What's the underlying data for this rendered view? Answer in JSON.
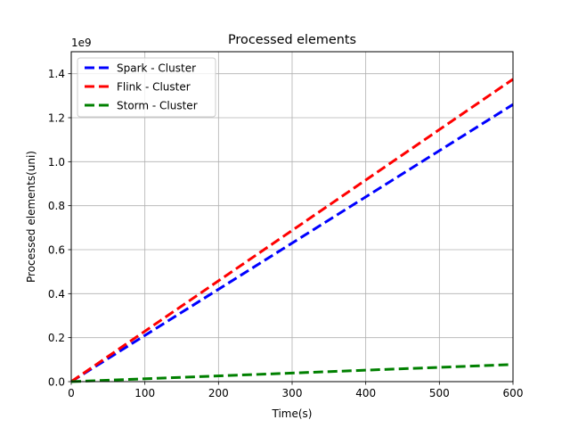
{
  "chart_data": {
    "type": "line",
    "title": "Processed elements",
    "xlabel": "Time(s)",
    "ylabel": "Processed elements(uni)",
    "y_offset_label": "1e9",
    "xlim": [
      0,
      600
    ],
    "ylim": [
      0,
      1.5
    ],
    "x_ticks": [
      0,
      100,
      200,
      300,
      400,
      500,
      600
    ],
    "x_tick_labels": [
      "0",
      "100",
      "200",
      "300",
      "400",
      "500",
      "600"
    ],
    "y_ticks": [
      0.0,
      0.2,
      0.4,
      0.6,
      0.8,
      1.0,
      1.2,
      1.4
    ],
    "y_tick_labels": [
      "0.0",
      "0.2",
      "0.4",
      "0.6",
      "0.8",
      "1.0",
      "1.2",
      "1.4"
    ],
    "grid": true,
    "legend_position": "upper-left",
    "series": [
      {
        "name": "Spark - Cluster",
        "color": "#0000ff",
        "x": [
          0,
          600
        ],
        "y": [
          0.0,
          1.26
        ]
      },
      {
        "name": "Flink - Cluster",
        "color": "#ff0000",
        "x": [
          0,
          600
        ],
        "y": [
          0.0,
          1.375
        ]
      },
      {
        "name": "Storm - Cluster",
        "color": "#008000",
        "x": [
          0,
          600
        ],
        "y": [
          0.0,
          0.078
        ]
      }
    ]
  }
}
